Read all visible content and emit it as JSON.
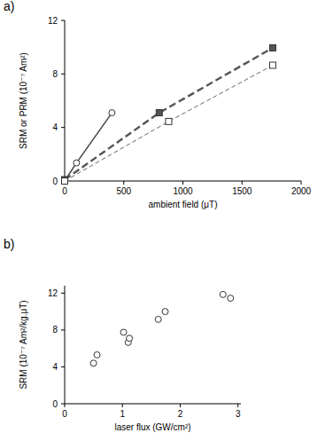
{
  "chart_data": [
    {
      "type": "line",
      "title": "a)",
      "xlabel": "ambient field (μT)",
      "ylabel": "SRM or PRM (10⁻⁷ Am²)",
      "xlim": [
        0,
        2000
      ],
      "xticks": [
        0,
        500,
        1000,
        1500,
        2000
      ],
      "ylim": [
        0,
        12
      ],
      "yticks": [
        0,
        4,
        8,
        12
      ],
      "grid": false,
      "series": [
        {
          "color": "#444444",
          "marker": "circle-open",
          "line_style": "solid",
          "x": [
            0,
            100,
            400
          ],
          "values": [
            0,
            1.35,
            5.1
          ]
        },
        {
          "color": "#555555",
          "marker": "square-filled",
          "line_style": "dashed-thick",
          "x": [
            0,
            800,
            1760
          ],
          "values": [
            0.1,
            5.1,
            9.95
          ]
        },
        {
          "color": "#666666",
          "marker": "square-open",
          "line_style": "dashed",
          "x": [
            0,
            880,
            1760
          ],
          "values": [
            0,
            4.45,
            8.65
          ]
        }
      ]
    },
    {
      "type": "scatter",
      "title": "b)",
      "xlabel": "laser flux (GW/cm²)",
      "ylabel": "SRM (10⁻⁷ Am²/kg.μT)",
      "xlim": [
        0,
        3.05
      ],
      "xticks": [
        0,
        1,
        2,
        3
      ],
      "ylim": [
        0,
        12.8
      ],
      "yticks": [
        0,
        4,
        8,
        12
      ],
      "grid": false,
      "color": "#444444",
      "marker": "circle-open",
      "x": [
        0.5,
        0.56,
        1.02,
        1.1,
        1.12,
        1.62,
        1.74,
        2.74,
        2.87
      ],
      "values": [
        4.4,
        5.3,
        7.75,
        6.65,
        7.1,
        9.15,
        10.0,
        11.85,
        11.45
      ]
    }
  ]
}
